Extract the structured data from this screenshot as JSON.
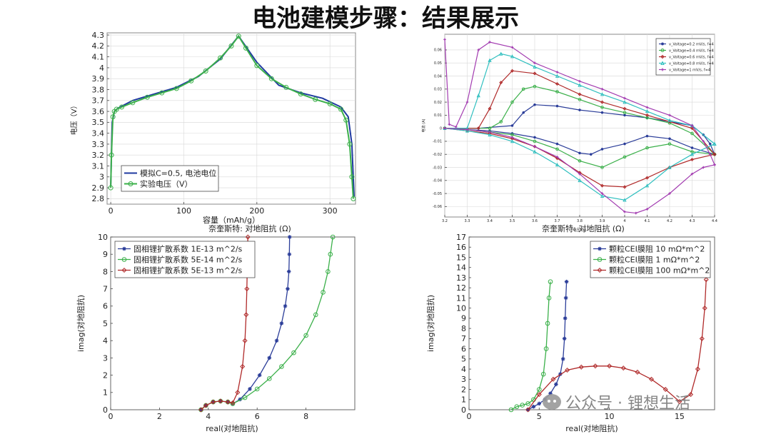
{
  "page": {
    "title": "电池建模步骤：结果展示"
  },
  "watermark": {
    "text": "公众号 · 锂想生活",
    "icon": "wechat-icon"
  },
  "chart_data": [
    {
      "id": "discharge",
      "type": "line",
      "xlabel": "容量（mAh/g）",
      "ylabel": "电压（V）",
      "xlim": [
        -5,
        335
      ],
      "ylim": [
        2.75,
        4.32
      ],
      "xticks": [
        0,
        100,
        200,
        300
      ],
      "yticks": [
        2.8,
        2.9,
        3.0,
        3.1,
        3.2,
        3.3,
        3.4,
        3.5,
        3.6,
        3.7,
        3.8,
        3.9,
        4.0,
        4.1,
        4.2,
        4.3
      ],
      "xtick_labels": [
        "0",
        "100",
        "200",
        "300"
      ],
      "ytick_labels": [
        "2.8",
        "2.9",
        "3",
        "3.1",
        "3.2",
        "3.3",
        "3.4",
        "3.5",
        "3.6",
        "3.7",
        "3.8",
        "3.9",
        "4",
        "4.1",
        "4.2",
        "4.3"
      ],
      "grid": true,
      "legend_position": "bottom-left",
      "series": [
        {
          "name": "模拟C=0.5, 电池电位",
          "color": "#1f3aa0",
          "marker": "none",
          "x": [
            0,
            2,
            5,
            10,
            30,
            60,
            90,
            120,
            150,
            175,
            200,
            230,
            260,
            290,
            315,
            325,
            330,
            333
          ],
          "y": [
            2.92,
            3.5,
            3.6,
            3.63,
            3.7,
            3.76,
            3.82,
            3.92,
            4.08,
            4.29,
            4.05,
            3.84,
            3.77,
            3.72,
            3.64,
            3.55,
            3.3,
            2.82
          ]
        },
        {
          "name": "实验电压（V）",
          "color": "#3bb04a",
          "marker": "circle",
          "x": [
            0,
            1,
            3,
            5,
            8,
            15,
            30,
            50,
            70,
            90,
            110,
            130,
            150,
            165,
            175,
            185,
            200,
            220,
            240,
            260,
            280,
            300,
            315,
            322,
            327,
            330,
            332
          ],
          "y": [
            2.9,
            3.2,
            3.55,
            3.6,
            3.62,
            3.64,
            3.68,
            3.73,
            3.77,
            3.81,
            3.88,
            3.97,
            4.09,
            4.2,
            4.29,
            4.18,
            4.02,
            3.9,
            3.82,
            3.76,
            3.71,
            3.67,
            3.62,
            3.52,
            3.3,
            3.0,
            2.8
          ]
        }
      ]
    },
    {
      "id": "cv",
      "type": "line",
      "title": "",
      "xlabel": "电压 (V)",
      "ylabel": "电流 (A)",
      "xlim": [
        3.2,
        4.4
      ],
      "ylim": [
        -0.068,
        0.072
      ],
      "xticks": [
        3.2,
        3.3,
        3.4,
        3.5,
        3.6,
        3.7,
        3.8,
        3.9,
        4.0,
        4.1,
        4.2,
        4.3,
        4.4
      ],
      "yticks": [
        -0.06,
        -0.05,
        -0.04,
        -0.03,
        -0.02,
        -0.01,
        0,
        0.01,
        0.02,
        0.03,
        0.04,
        0.05,
        0.06
      ],
      "xtick_labels": [
        "3.2",
        "3.3",
        "3.4",
        "3.5",
        "3.6",
        "3.7",
        "3.8",
        "3.9",
        "4",
        "4.1",
        "4.2",
        "4.3",
        "4.4"
      ],
      "ytick_labels": [
        "-0.06",
        "-0.05",
        "-0.04",
        "-0.03",
        "-0.02",
        "-0.01",
        "0",
        "0.01",
        "0.02",
        "0.03",
        "0.04",
        "0.05",
        "0.06"
      ],
      "grid": true,
      "legend_position": "top-right",
      "series": [
        {
          "name": "v_Voltage=0.2 mV/s, f=4",
          "color": "#2b3d99",
          "marker": "star",
          "x": [
            3.2,
            3.35,
            3.5,
            3.55,
            3.6,
            3.7,
            3.8,
            3.9,
            4.0,
            4.1,
            4.2,
            4.3,
            4.35,
            4.38,
            4.4
          ],
          "y": [
            0,
            0,
            0.002,
            0.012,
            0.018,
            0.017,
            0.014,
            0.012,
            0.01,
            0.008,
            0.005,
            0.002,
            -0.005,
            -0.012,
            -0.02
          ],
          "x2": [
            4.4,
            4.3,
            4.2,
            4.1,
            4.0,
            3.9,
            3.85,
            3.8,
            3.7,
            3.6,
            3.5,
            3.4,
            3.3,
            3.2
          ],
          "y2": [
            -0.02,
            -0.015,
            -0.008,
            -0.006,
            -0.012,
            -0.016,
            -0.02,
            -0.019,
            -0.012,
            -0.007,
            -0.004,
            -0.002,
            -0.001,
            0
          ]
        },
        {
          "name": "v_Voltage=0.4 mV/s, f=4",
          "color": "#3bb04a",
          "marker": "circle",
          "x": [
            3.2,
            3.4,
            3.45,
            3.5,
            3.55,
            3.6,
            3.7,
            3.8,
            3.9,
            4.0,
            4.1,
            4.2,
            4.3,
            4.4
          ],
          "y": [
            0,
            0,
            0.005,
            0.02,
            0.03,
            0.032,
            0.028,
            0.022,
            0.016,
            0.012,
            0.008,
            0.004,
            -0.004,
            -0.02
          ],
          "x2": [
            4.4,
            4.3,
            4.2,
            4.1,
            4.0,
            3.9,
            3.8,
            3.7,
            3.6,
            3.5,
            3.4,
            3.3,
            3.2
          ],
          "y2": [
            -0.02,
            -0.018,
            -0.012,
            -0.015,
            -0.022,
            -0.03,
            -0.025,
            -0.016,
            -0.01,
            -0.005,
            -0.003,
            -0.001,
            0
          ]
        },
        {
          "name": "v_Voltage=0.6 mV/s, f=4",
          "color": "#b02a2a",
          "marker": "diamond",
          "x": [
            3.2,
            3.35,
            3.4,
            3.45,
            3.5,
            3.6,
            3.7,
            3.8,
            3.9,
            4.0,
            4.1,
            4.2,
            4.3,
            4.4
          ],
          "y": [
            0,
            0,
            0.015,
            0.035,
            0.044,
            0.042,
            0.034,
            0.026,
            0.02,
            0.015,
            0.01,
            0.005,
            0,
            -0.02
          ],
          "x2": [
            4.4,
            4.3,
            4.2,
            4.1,
            4.0,
            3.9,
            3.8,
            3.7,
            3.6,
            3.5,
            3.4,
            3.3,
            3.2
          ],
          "y2": [
            -0.02,
            -0.024,
            -0.03,
            -0.038,
            -0.045,
            -0.044,
            -0.034,
            -0.023,
            -0.014,
            -0.008,
            -0.004,
            -0.002,
            0
          ]
        },
        {
          "name": "v_Voltage=0.8 mV/s, f=4",
          "color": "#2fbfbf",
          "marker": "triangle",
          "x": [
            3.2,
            3.3,
            3.35,
            3.4,
            3.45,
            3.5,
            3.6,
            3.7,
            3.8,
            3.9,
            4.0,
            4.1,
            4.2,
            4.3,
            4.4
          ],
          "y": [
            0,
            0,
            0.025,
            0.052,
            0.057,
            0.055,
            0.047,
            0.04,
            0.033,
            0.026,
            0.02,
            0.013,
            0.006,
            0.002,
            -0.012
          ],
          "x2": [
            4.4,
            4.3,
            4.2,
            4.1,
            4.0,
            3.9,
            3.8,
            3.7,
            3.6,
            3.5,
            3.4,
            3.3,
            3.2
          ],
          "y2": [
            -0.012,
            -0.02,
            -0.03,
            -0.044,
            -0.055,
            -0.052,
            -0.04,
            -0.028,
            -0.018,
            -0.01,
            -0.005,
            -0.002,
            0
          ]
        },
        {
          "name": "v_Voltage=1 mV/s, f=4",
          "color": "#a23bb0",
          "marker": "cross",
          "x": [
            3.2,
            3.22,
            3.25,
            3.3,
            3.35,
            3.4,
            3.5,
            3.6,
            3.7,
            3.8,
            3.9,
            4.0,
            4.1,
            4.2,
            4.3,
            4.35,
            4.38,
            4.4
          ],
          "y": [
            0.068,
            0.003,
            0.001,
            0.02,
            0.06,
            0.066,
            0.062,
            0.05,
            0.043,
            0.036,
            0.03,
            0.023,
            0.016,
            0.01,
            0.002,
            -0.01,
            -0.02,
            -0.028
          ],
          "x2": [
            4.4,
            4.35,
            4.3,
            4.2,
            4.1,
            4.05,
            4.0,
            3.9,
            3.8,
            3.7,
            3.6,
            3.5,
            3.4,
            3.3,
            3.2
          ],
          "y2": [
            -0.028,
            -0.03,
            -0.035,
            -0.05,
            -0.062,
            -0.065,
            -0.064,
            -0.05,
            -0.035,
            -0.022,
            -0.014,
            -0.007,
            -0.003,
            -0.001,
            0
          ]
        }
      ]
    },
    {
      "id": "nyquist-diffusion",
      "type": "line",
      "title": "奈奎斯特: 对地阻抗 (Ω)",
      "xlabel": "real(对地阻抗)",
      "ylabel": "imag(对地阻抗)",
      "xlim": [
        0,
        10
      ],
      "ylim": [
        0,
        10
      ],
      "xticks": [
        0,
        2,
        4,
        6,
        8
      ],
      "yticks": [
        0,
        1,
        2,
        3,
        4,
        5,
        6,
        7,
        8,
        9,
        10
      ],
      "xtick_labels": [
        "0",
        "2",
        "4",
        "6",
        "8"
      ],
      "ytick_labels": [
        "0",
        "1",
        "2",
        "3",
        "4",
        "5",
        "6",
        "7",
        "8",
        "9",
        "10"
      ],
      "grid": false,
      "legend_position": "top-left",
      "series": [
        {
          "name": "固相锂扩散系数 1E-13 m^2/s",
          "color": "#2b3d99",
          "marker": "star",
          "x": [
            3.7,
            3.9,
            4.2,
            4.5,
            4.8,
            5.0,
            5.3,
            5.7,
            6.1,
            6.5,
            6.8,
            7.0,
            7.15,
            7.25,
            7.3,
            7.32,
            7.33
          ],
          "y": [
            0,
            0.25,
            0.45,
            0.5,
            0.45,
            0.35,
            0.6,
            1.2,
            2.0,
            3.0,
            4.0,
            5.0,
            6.0,
            7.0,
            8.0,
            9.0,
            10.0
          ]
        },
        {
          "name": "固相锂扩散系数 5E-14 m^2/s",
          "color": "#3bb04a",
          "marker": "circle",
          "x": [
            3.7,
            3.9,
            4.2,
            4.5,
            4.8,
            5.0,
            5.5,
            6.0,
            6.5,
            7.0,
            7.5,
            8.0,
            8.4,
            8.7,
            8.9,
            9.0,
            9.1
          ],
          "y": [
            0,
            0.25,
            0.45,
            0.5,
            0.45,
            0.35,
            0.7,
            1.2,
            1.8,
            2.5,
            3.3,
            4.3,
            5.5,
            6.8,
            8.0,
            9.0,
            10.0
          ]
        },
        {
          "name": "固相锂扩散系数 5E-13 m^2/s",
          "color": "#b02a2a",
          "marker": "diamond",
          "x": [
            3.7,
            3.9,
            4.2,
            4.5,
            4.8,
            5.0,
            5.2,
            5.4,
            5.5,
            5.55,
            5.58,
            5.6,
            5.62
          ],
          "y": [
            0,
            0.25,
            0.45,
            0.5,
            0.45,
            0.4,
            1.0,
            2.5,
            4.0,
            5.5,
            7.0,
            8.5,
            10.0
          ]
        }
      ]
    },
    {
      "id": "nyquist-cei",
      "type": "line",
      "title": "奈奎斯特: 对地阻抗 (Ω)",
      "xlabel": "real(对地阻抗)",
      "ylabel": "imag(对地阻抗)",
      "xlim": [
        0,
        17.5
      ],
      "ylim": [
        0,
        17
      ],
      "xticks": [
        0,
        5,
        10,
        15
      ],
      "yticks": [
        0,
        1,
        2,
        3,
        4,
        5,
        6,
        7,
        8,
        9,
        10,
        11,
        12,
        13,
        14,
        15,
        16,
        17
      ],
      "xtick_labels": [
        "0",
        "5",
        "10",
        "15"
      ],
      "ytick_labels": [
        "0",
        "1",
        "2",
        "3",
        "4",
        "5",
        "6",
        "7",
        "8",
        "9",
        "10",
        "11",
        "12",
        "13",
        "14",
        "15",
        "16",
        "17"
      ],
      "grid": false,
      "legend_position": "top-right",
      "series": [
        {
          "name": "颗粒CEI膜阻 10 mΩ*m^2",
          "color": "#2b3d99",
          "marker": "star",
          "x": [
            4.2,
            4.6,
            5.0,
            5.4,
            5.8,
            6.2,
            6.5,
            6.7,
            6.8,
            6.85,
            6.9,
            6.95
          ],
          "y": [
            0,
            0.3,
            0.6,
            1.0,
            1.6,
            2.5,
            3.5,
            5.0,
            7.0,
            9.0,
            11.0,
            12.6
          ]
        },
        {
          "name": "颗粒CEI膜阻 1 mΩ*m^2",
          "color": "#3bb04a",
          "marker": "circle",
          "x": [
            3.0,
            3.4,
            3.8,
            4.2,
            4.6,
            5.0,
            5.3,
            5.5,
            5.6,
            5.7,
            5.8
          ],
          "y": [
            0,
            0.3,
            0.45,
            0.6,
            1.0,
            2.0,
            3.5,
            6.0,
            8.5,
            11.0,
            12.6
          ]
        },
        {
          "name": "颗粒CEI膜阻 100 mΩ*m^2",
          "color": "#b02a2a",
          "marker": "diamond",
          "x": [
            4.2,
            5.0,
            6.0,
            7.0,
            8.0,
            9.0,
            10.0,
            11.0,
            12.0,
            13.0,
            14.0,
            15.0,
            15.8,
            16.3,
            16.6,
            16.8,
            16.9
          ],
          "y": [
            0,
            1.5,
            3.0,
            3.9,
            4.2,
            4.3,
            4.3,
            4.1,
            3.7,
            3.0,
            2.0,
            0.8,
            1.5,
            4.0,
            7.0,
            10.0,
            12.8
          ]
        }
      ]
    }
  ]
}
